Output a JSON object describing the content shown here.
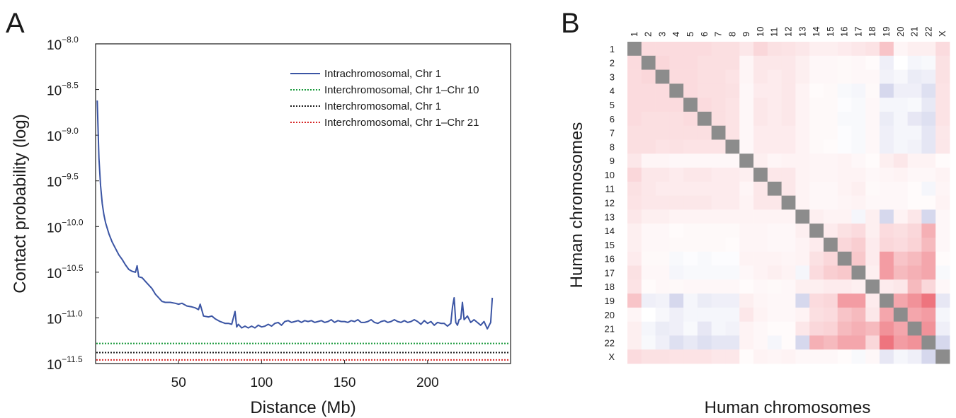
{
  "panels": {
    "a_letter": "A",
    "b_letter": "B"
  },
  "chart_data": [
    {
      "type": "line",
      "panel": "A",
      "xlabel": "Distance (Mb)",
      "ylabel": "Contact probability (log)",
      "xlim": [
        0,
        250
      ],
      "ylim": [
        -11.5,
        -8.0
      ],
      "yscale": "log10",
      "xticks": [
        50,
        100,
        150,
        200
      ],
      "yticks": [
        {
          "value": -8.0,
          "base": "10",
          "exp": "−8.0"
        },
        {
          "value": -8.5,
          "base": "10",
          "exp": "−8.5"
        },
        {
          "value": -9.0,
          "base": "10",
          "exp": "−9.0"
        },
        {
          "value": -9.5,
          "base": "10",
          "exp": "−9.5"
        },
        {
          "value": -10.0,
          "base": "10",
          "exp": "−10.0"
        },
        {
          "value": -10.5,
          "base": "10",
          "exp": "−10.5"
        },
        {
          "value": -11.0,
          "base": "10",
          "exp": "−11.0"
        },
        {
          "value": -11.5,
          "base": "10",
          "exp": "−11.5"
        }
      ],
      "grid": false,
      "legend_position": "top-right",
      "series": [
        {
          "name": "Intrachromosomal, Chr 1",
          "style": "solid",
          "color": "#3b55a4",
          "x": [
            1,
            2,
            3,
            4,
            5,
            6,
            8,
            10,
            12,
            14,
            16,
            18,
            20,
            22,
            24,
            25,
            26,
            28,
            30,
            32,
            34,
            36,
            38,
            40,
            42,
            45,
            48,
            50,
            52,
            55,
            58,
            60,
            62,
            63,
            65,
            68,
            70,
            72,
            75,
            78,
            80,
            82,
            84,
            85,
            86,
            88,
            90,
            92,
            94,
            96,
            98,
            100,
            102,
            104,
            106,
            108,
            110,
            112,
            114,
            116,
            118,
            120,
            122,
            124,
            126,
            128,
            130,
            132,
            134,
            136,
            138,
            140,
            142,
            144,
            146,
            148,
            150,
            152,
            154,
            156,
            158,
            160,
            162,
            164,
            166,
            168,
            170,
            172,
            174,
            176,
            178,
            180,
            182,
            184,
            186,
            188,
            190,
            192,
            194,
            196,
            198,
            200,
            202,
            204,
            206,
            208,
            210,
            212,
            214,
            215,
            216,
            217,
            218,
            219,
            220,
            221,
            222,
            224,
            226,
            228,
            230,
            232,
            234,
            236,
            238,
            239
          ],
          "y": [
            -8.62,
            -9.25,
            -9.55,
            -9.75,
            -9.87,
            -9.96,
            -10.08,
            -10.17,
            -10.24,
            -10.31,
            -10.36,
            -10.42,
            -10.47,
            -10.49,
            -10.5,
            -10.43,
            -10.55,
            -10.56,
            -10.6,
            -10.64,
            -10.68,
            -10.74,
            -10.78,
            -10.82,
            -10.83,
            -10.83,
            -10.84,
            -10.85,
            -10.84,
            -10.87,
            -10.88,
            -10.89,
            -10.91,
            -10.85,
            -10.98,
            -10.99,
            -10.98,
            -11.01,
            -11.04,
            -11.06,
            -11.06,
            -11.07,
            -10.93,
            -11.1,
            -11.07,
            -11.11,
            -11.09,
            -11.11,
            -11.09,
            -11.11,
            -11.08,
            -11.1,
            -11.09,
            -11.07,
            -11.09,
            -11.06,
            -11.05,
            -11.08,
            -11.04,
            -11.03,
            -11.05,
            -11.04,
            -11.03,
            -11.05,
            -11.03,
            -11.04,
            -11.03,
            -11.05,
            -11.04,
            -11.03,
            -11.05,
            -11.04,
            -11.02,
            -11.05,
            -11.03,
            -11.04,
            -11.04,
            -11.05,
            -11.03,
            -11.04,
            -11.02,
            -11.05,
            -11.05,
            -11.04,
            -11.02,
            -11.05,
            -11.06,
            -11.04,
            -11.03,
            -11.05,
            -11.04,
            -11.02,
            -11.04,
            -11.05,
            -11.03,
            -11.05,
            -11.04,
            -11.02,
            -11.04,
            -11.07,
            -11.03,
            -11.06,
            -11.04,
            -11.08,
            -11.05,
            -11.06,
            -11.06,
            -11.09,
            -11.06,
            -10.88,
            -10.78,
            -11.05,
            -11.08,
            -11.02,
            -11.01,
            -10.83,
            -11.02,
            -10.98,
            -11.05,
            -11.02,
            -11.05,
            -11.08,
            -11.04,
            -11.12,
            -11.05,
            -10.78
          ]
        },
        {
          "name": "Interchromosomal, Chr 1–Chr 10",
          "style": "dotted",
          "color": "#1a9a3c",
          "constant": -11.28
        },
        {
          "name": "Interchromosomal, Chr 1",
          "style": "dotted",
          "color": "#1a1a1a",
          "constant": -11.38
        },
        {
          "name": "Interchromosomal, Chr 1–Chr 21",
          "style": "dotted",
          "color": "#d62828",
          "constant": -11.46
        }
      ]
    },
    {
      "type": "heatmap",
      "panel": "B",
      "xlabel": "Human chromosomes",
      "ylabel": "Human chromosomes",
      "labels": [
        "1",
        "2",
        "3",
        "4",
        "5",
        "6",
        "7",
        "8",
        "9",
        "10",
        "11",
        "12",
        "13",
        "14",
        "15",
        "16",
        "17",
        "18",
        "19",
        "20",
        "21",
        "22",
        "X"
      ],
      "colors": {
        "positive": "#e63946",
        "negative": "#5c62b8",
        "neutral": "#ffffff",
        "diagonal": "#8c8c8c"
      },
      "value_range": [
        -1,
        1
      ],
      "values": [
        [
          0,
          0.18,
          0.18,
          0.18,
          0.18,
          0.18,
          0.16,
          0.16,
          0.12,
          0.2,
          0.15,
          0.14,
          0.12,
          0.08,
          0.08,
          0.1,
          0.12,
          0.14,
          0.3,
          0.05,
          0.08,
          0.08,
          0.18
        ],
        [
          0.18,
          0,
          0.2,
          0.18,
          0.18,
          0.16,
          0.16,
          0.16,
          0.05,
          0.12,
          0.12,
          0.12,
          0.08,
          0.04,
          0.04,
          0.03,
          0.04,
          0.02,
          -0.1,
          0,
          -0.06,
          -0.04,
          0.15
        ],
        [
          0.18,
          0.2,
          0,
          0.18,
          0.18,
          0.16,
          0.16,
          0.14,
          0.05,
          0.12,
          0.1,
          0.12,
          0.08,
          0.04,
          0.04,
          0.03,
          0.04,
          0.04,
          -0.08,
          -0.05,
          -0.12,
          -0.1,
          0.15
        ],
        [
          0.18,
          0.18,
          0.18,
          0,
          0.18,
          0.16,
          0.16,
          0.15,
          0.04,
          0.1,
          0.1,
          0.12,
          0.06,
          0.02,
          0.03,
          -0.04,
          -0.06,
          0.03,
          -0.25,
          -0.1,
          -0.1,
          -0.2,
          0.14
        ],
        [
          0.18,
          0.18,
          0.18,
          0.18,
          0,
          0.18,
          0.16,
          0.14,
          0.04,
          0.12,
          0.1,
          0.12,
          0.06,
          0.03,
          0.03,
          -0.02,
          -0.04,
          0.04,
          -0.06,
          -0.06,
          -0.04,
          -0.14,
          0.14
        ],
        [
          0.18,
          0.16,
          0.16,
          0.16,
          0.18,
          0,
          0.16,
          0.14,
          0.04,
          0.12,
          0.1,
          0.12,
          0.06,
          0.03,
          0.03,
          -0.04,
          -0.04,
          0.04,
          -0.12,
          -0.06,
          -0.15,
          -0.2,
          0.14
        ],
        [
          0.16,
          0.16,
          0.16,
          0.16,
          0.16,
          0.16,
          0,
          0.14,
          0.04,
          0.1,
          0.1,
          0.1,
          0.06,
          0.03,
          0.03,
          -0.02,
          -0.04,
          0.04,
          -0.1,
          -0.06,
          -0.06,
          -0.16,
          0.12
        ],
        [
          0.16,
          0.16,
          0.14,
          0.15,
          0.14,
          0.14,
          0.14,
          0,
          0.04,
          0.1,
          0.1,
          0.1,
          0.06,
          0.03,
          0.02,
          -0.02,
          -0.04,
          0.04,
          -0.1,
          -0.06,
          -0.08,
          -0.16,
          0.12
        ],
        [
          0.12,
          0.05,
          0.05,
          0.04,
          0.04,
          0.04,
          0.04,
          0.04,
          0,
          0.08,
          0.05,
          0.06,
          0.06,
          0.05,
          0.05,
          0.06,
          0.04,
          0.02,
          0.08,
          0.12,
          0.06,
          0.06,
          0.02
        ],
        [
          0.2,
          0.12,
          0.12,
          0.1,
          0.12,
          0.12,
          0.1,
          0.1,
          0.08,
          0,
          0.12,
          0.12,
          0.06,
          0.05,
          0.05,
          0.06,
          0.06,
          0.04,
          0.05,
          0.06,
          0.04,
          0.04,
          0.06
        ],
        [
          0.15,
          0.12,
          0.1,
          0.1,
          0.1,
          0.1,
          0.1,
          0.1,
          0.05,
          0.12,
          0,
          0.12,
          0.06,
          0.04,
          0.04,
          0.06,
          0.08,
          0.03,
          0.04,
          0.04,
          0.02,
          -0.06,
          0.05
        ],
        [
          0.14,
          0.12,
          0.12,
          0.12,
          0.12,
          0.12,
          0.1,
          0.1,
          0.06,
          0.12,
          0.12,
          0,
          0.06,
          0.04,
          0.04,
          0.05,
          0.06,
          0.04,
          0.04,
          0.04,
          0.02,
          0.02,
          0.06
        ],
        [
          0.12,
          0.08,
          0.08,
          0.06,
          0.06,
          0.06,
          0.06,
          0.06,
          0.06,
          0.06,
          0.06,
          0.06,
          0,
          0.08,
          0.06,
          0.06,
          -0.06,
          0.08,
          -0.25,
          0.06,
          0.12,
          -0.25,
          0.04
        ],
        [
          0.08,
          0.04,
          0.04,
          0.02,
          0.03,
          0.03,
          0.03,
          0.03,
          0.05,
          0.05,
          0.04,
          0.04,
          0.08,
          0,
          0.1,
          0.15,
          0.18,
          0.08,
          0.18,
          0.16,
          0.2,
          0.4,
          0.04
        ],
        [
          0.08,
          0.04,
          0.04,
          0.03,
          0.03,
          0.03,
          0.03,
          0.02,
          0.05,
          0.05,
          0.04,
          0.04,
          0.06,
          0.1,
          0,
          0.2,
          0.25,
          0.1,
          0.2,
          0.18,
          0.22,
          0.35,
          0.04
        ],
        [
          0.1,
          0.03,
          0.03,
          -0.04,
          -0.02,
          -0.04,
          -0.02,
          -0.02,
          0.06,
          0.06,
          0.06,
          0.05,
          0.06,
          0.15,
          0.2,
          0,
          0.28,
          0.1,
          0.5,
          0.3,
          0.35,
          0.45,
          0.02
        ],
        [
          0.15,
          0.04,
          0.04,
          -0.06,
          -0.04,
          -0.04,
          -0.04,
          -0.04,
          0.04,
          0.06,
          0.08,
          0.06,
          -0.06,
          0.18,
          0.25,
          0.28,
          0,
          0.08,
          0.5,
          0.35,
          0.4,
          0.45,
          -0.04
        ],
        [
          0.14,
          0.02,
          0.04,
          0.03,
          0.04,
          0.04,
          0.04,
          0.04,
          0.02,
          0.04,
          0.03,
          0.04,
          0.08,
          0.08,
          0.1,
          0.1,
          0.08,
          0,
          0.1,
          0.12,
          0.35,
          0.2,
          0.04
        ],
        [
          0.3,
          -0.1,
          -0.08,
          -0.25,
          -0.06,
          -0.12,
          -0.1,
          -0.1,
          0.08,
          0.05,
          0.04,
          0.04,
          -0.25,
          0.18,
          0.2,
          0.5,
          0.5,
          0.1,
          0,
          0.45,
          0.55,
          0.7,
          -0.15
        ],
        [
          0.05,
          0,
          -0.05,
          -0.1,
          -0.06,
          -0.06,
          -0.06,
          -0.06,
          0.12,
          0.06,
          0.04,
          0.04,
          0.06,
          0.16,
          0.18,
          0.3,
          0.35,
          0.12,
          0.45,
          0,
          0.45,
          0.5,
          -0.06
        ],
        [
          0.08,
          -0.06,
          -0.12,
          -0.1,
          -0.04,
          -0.15,
          -0.06,
          -0.08,
          0.06,
          0.04,
          0.02,
          0.02,
          0.12,
          0.2,
          0.22,
          0.35,
          0.4,
          0.35,
          0.55,
          0.45,
          0,
          0.55,
          -0.1
        ],
        [
          0.08,
          -0.04,
          -0.1,
          -0.2,
          -0.14,
          -0.2,
          -0.16,
          -0.16,
          0.06,
          0.04,
          -0.06,
          0.02,
          -0.25,
          0.4,
          0.35,
          0.45,
          0.45,
          0.2,
          0.7,
          0.5,
          0.55,
          0,
          -0.25
        ],
        [
          0.18,
          0.15,
          0.15,
          0.14,
          0.14,
          0.14,
          0.12,
          0.12,
          0.02,
          0.06,
          0.05,
          0.06,
          0.04,
          0.04,
          0.04,
          0.02,
          -0.04,
          0.04,
          -0.15,
          -0.06,
          -0.1,
          -0.25,
          0
        ]
      ]
    }
  ]
}
